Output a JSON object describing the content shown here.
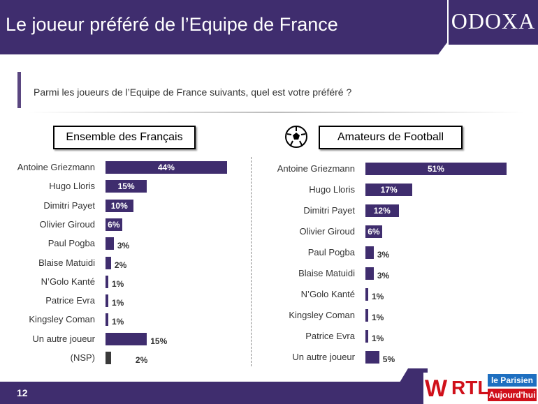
{
  "header": {
    "title": "Le joueur préféré de l’Equipe de France",
    "logo": "ODOXA"
  },
  "question": "Parmi les joueurs de l’Equipe de France suivants, quel est votre préféré ?",
  "footer": {
    "page": "12",
    "sponsors": [
      "WINAMAX",
      "RTL",
      "le Parisien",
      "Aujourd'hui"
    ]
  },
  "colors": {
    "bar": "#3f2d6e",
    "nsp": "#3a3a3a"
  },
  "chart_data": [
    {
      "type": "bar",
      "orientation": "horizontal",
      "title": "Ensemble des Français",
      "unit": "%",
      "categories": [
        "Antoine Griezmann",
        "Hugo Lloris",
        "Dimitri Payet",
        "Olivier Giroud",
        "Paul Pogba",
        "Blaise Matuidi",
        "N’Golo Kanté",
        "Patrice Evra",
        "Kingsley Coman",
        "Un autre joueur",
        "(NSP)"
      ],
      "values": [
        44,
        15,
        10,
        6,
        3,
        2,
        1,
        1,
        1,
        15,
        2
      ]
    },
    {
      "type": "bar",
      "orientation": "horizontal",
      "title": "Amateurs de Football",
      "icon": "football-icon",
      "unit": "%",
      "categories": [
        "Antoine Griezmann",
        "Hugo Lloris",
        "Dimitri Payet",
        "Olivier Giroud",
        "Paul Pogba",
        "Blaise Matuidi",
        "N’Golo Kanté",
        "Kingsley Coman",
        "Patrice Evra",
        "Un autre joueur"
      ],
      "values": [
        51,
        17,
        12,
        6,
        3,
        3,
        1,
        1,
        1,
        5
      ]
    }
  ]
}
